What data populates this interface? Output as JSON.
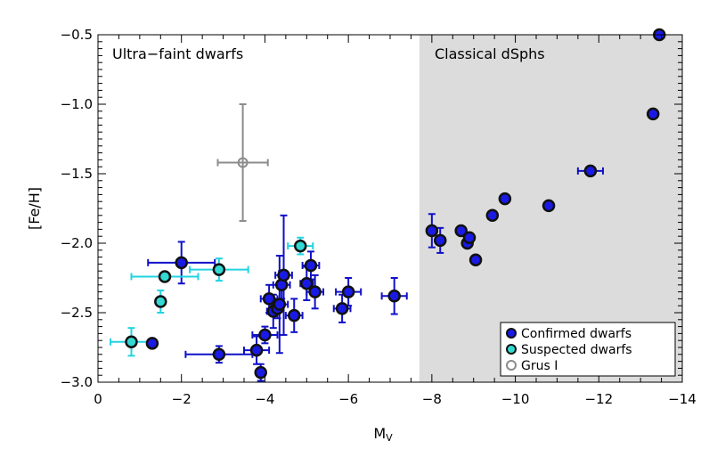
{
  "chart_data": {
    "type": "scatter",
    "xlabel": "M",
    "xlabel_sub": "V",
    "ylabel": "[Fe/H]",
    "xlim": [
      0,
      -14
    ],
    "ylim": [
      -3.0,
      -0.5
    ],
    "x_ticks": [
      0,
      -2,
      -4,
      -6,
      -8,
      -10,
      -12,
      -14
    ],
    "x_tick_labels": [
      "0",
      "−2",
      "−4",
      "−6",
      "−8",
      "−10",
      "−12",
      "−14"
    ],
    "y_ticks": [
      -0.5,
      -1.0,
      -1.5,
      -2.0,
      -2.5,
      -3.0
    ],
    "y_tick_labels": [
      "−0.5",
      "−1.0",
      "−1.5",
      "−2.0",
      "−2.5",
      "−3.0"
    ],
    "shaded_region": {
      "x_from": -7.7,
      "x_to": -14,
      "color": "#dcdcdc"
    },
    "annotations": [
      {
        "text": "Ultra−faint dwarfs",
        "region": "left"
      },
      {
        "text": "Classical dSphs",
        "region": "right"
      }
    ],
    "legend": {
      "position": "bottom-right",
      "entries": [
        {
          "label": "Confirmed dwarfs",
          "series": "confirmed"
        },
        {
          "label": "Suspected dwarfs",
          "series": "suspected"
        },
        {
          "label": "Grus I",
          "series": "grus"
        }
      ]
    },
    "series": [
      {
        "name": "Confirmed dwarfs",
        "key": "confirmed",
        "fill": "#1a1ae6",
        "edge": "#111111",
        "errcolor": "#1010c8",
        "points": [
          {
            "x": -1.3,
            "y": -2.72,
            "xerr": 0.1,
            "yerr": 0.0
          },
          {
            "x": -2.0,
            "y": -2.14,
            "xerr": 0.8,
            "yerr": 0.15
          },
          {
            "x": -2.9,
            "y": -2.8,
            "xerr": 0.8,
            "yerr": 0.06
          },
          {
            "x": -3.8,
            "y": -2.77,
            "xerr": 0.3,
            "yerr": 0.1
          },
          {
            "x": -3.9,
            "y": -2.93,
            "xerr": 0.1,
            "yerr": 0.06
          },
          {
            "x": -4.0,
            "y": -2.66,
            "xerr": 0.3,
            "yerr": 0.06
          },
          {
            "x": -4.1,
            "y": -2.4,
            "xerr": 0.2,
            "yerr": 0.1
          },
          {
            "x": -4.2,
            "y": -2.49,
            "xerr": 0.15,
            "yerr": 0.12
          },
          {
            "x": -4.3,
            "y": -2.47,
            "xerr": 0.15,
            "yerr": 0.07
          },
          {
            "x": -4.35,
            "y": -2.44,
            "xerr": 0.2,
            "yerr": 0.35
          },
          {
            "x": -4.4,
            "y": -2.3,
            "xerr": 0.2,
            "yerr": 0.1
          },
          {
            "x": -4.45,
            "y": -2.23,
            "xerr": 0.2,
            "yerr": 0.43
          },
          {
            "x": -4.7,
            "y": -2.52,
            "xerr": 0.2,
            "yerr": 0.12
          },
          {
            "x": -5.0,
            "y": -2.29,
            "xerr": 0.15,
            "yerr": 0.12
          },
          {
            "x": -5.1,
            "y": -2.16,
            "xerr": 0.2,
            "yerr": 0.1
          },
          {
            "x": -5.2,
            "y": -2.35,
            "xerr": 0.2,
            "yerr": 0.12
          },
          {
            "x": -5.85,
            "y": -2.47,
            "xerr": 0.2,
            "yerr": 0.1
          },
          {
            "x": -6.0,
            "y": -2.35,
            "xerr": 0.3,
            "yerr": 0.1
          },
          {
            "x": -7.1,
            "y": -2.38,
            "xerr": 0.3,
            "yerr": 0.13
          },
          {
            "x": -8.0,
            "y": -1.91,
            "xerr": 0.0,
            "yerr": 0.12
          },
          {
            "x": -8.2,
            "y": -1.98,
            "xerr": 0.0,
            "yerr": 0.09
          },
          {
            "x": -8.7,
            "y": -1.91,
            "xerr": 0.0,
            "yerr": 0.0
          },
          {
            "x": -8.85,
            "y": -2.0,
            "xerr": 0.0,
            "yerr": 0.0
          },
          {
            "x": -8.9,
            "y": -1.96,
            "xerr": 0.0,
            "yerr": 0.0
          },
          {
            "x": -9.05,
            "y": -2.12,
            "xerr": 0.0,
            "yerr": 0.0
          },
          {
            "x": -9.45,
            "y": -1.8,
            "xerr": 0.0,
            "yerr": 0.0
          },
          {
            "x": -9.75,
            "y": -1.68,
            "xerr": 0.0,
            "yerr": 0.0
          },
          {
            "x": -10.8,
            "y": -1.73,
            "xerr": 0.0,
            "yerr": 0.0
          },
          {
            "x": -11.8,
            "y": -1.48,
            "xerr": 0.3,
            "yerr": 0.0
          },
          {
            "x": -13.3,
            "y": -1.07,
            "xerr": 0.0,
            "yerr": 0.0
          },
          {
            "x": -13.45,
            "y": -0.5,
            "xerr": 0.0,
            "yerr": 0.0
          }
        ]
      },
      {
        "name": "Suspected dwarfs",
        "key": "suspected",
        "fill": "#33d9d2",
        "edge": "#111111",
        "errcolor": "#22d3e0",
        "points": [
          {
            "x": -0.8,
            "y": -2.71,
            "xerr": 0.5,
            "yerr": 0.1
          },
          {
            "x": -1.5,
            "y": -2.42,
            "xerr": 0.1,
            "yerr": 0.08
          },
          {
            "x": -1.6,
            "y": -2.24,
            "xerr": 0.8,
            "yerr": 0.0
          },
          {
            "x": -2.9,
            "y": -2.19,
            "xerr": 0.7,
            "yerr": 0.08
          },
          {
            "x": -4.85,
            "y": -2.02,
            "xerr": 0.3,
            "yerr": 0.06
          }
        ]
      },
      {
        "name": "Grus I",
        "key": "grus",
        "fill": "none",
        "edge": "#8c8c8c",
        "errcolor": "#8c8c8c",
        "points": [
          {
            "x": -3.47,
            "y": -1.42,
            "xerr": 0.6,
            "yerr": 0.42
          }
        ]
      }
    ]
  }
}
